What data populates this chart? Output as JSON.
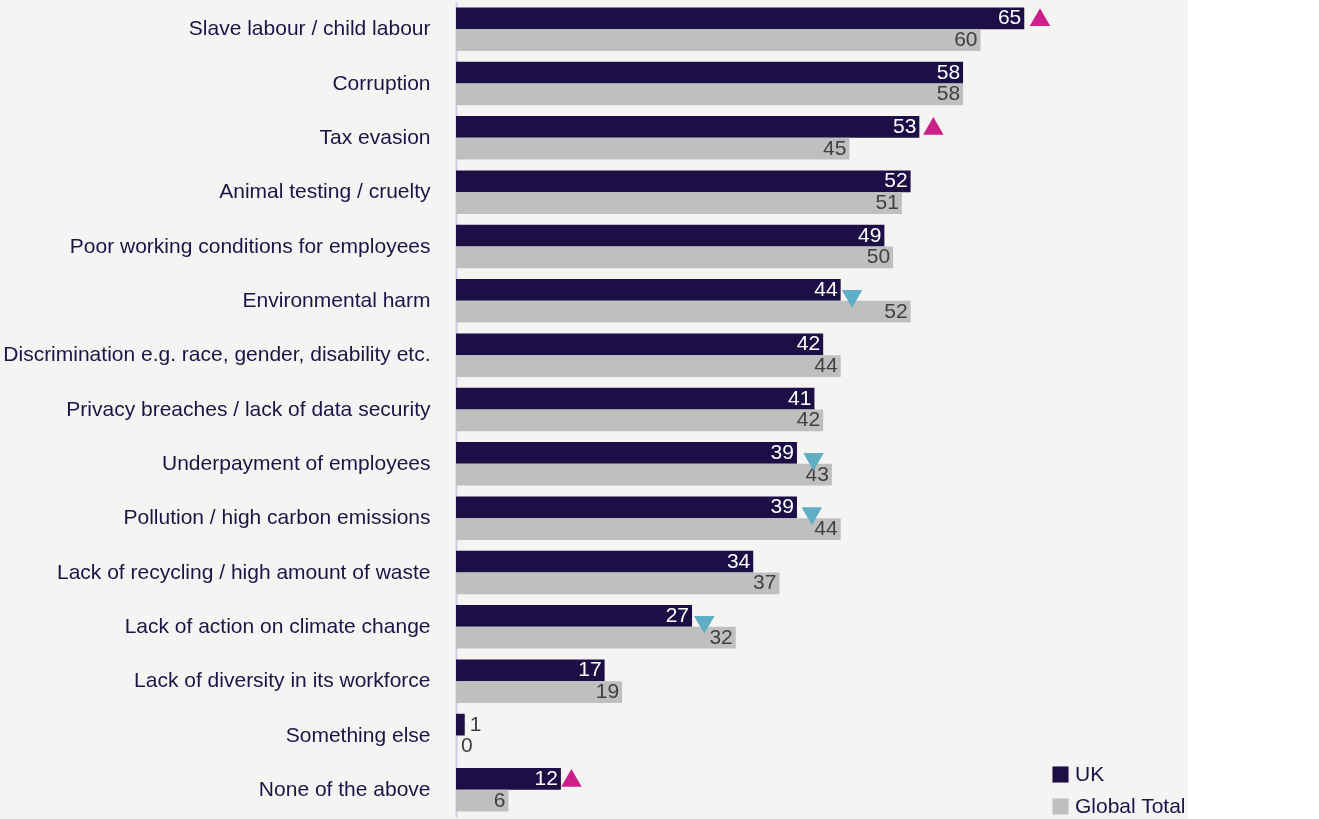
{
  "chart_data": {
    "type": "bar",
    "orientation": "horizontal",
    "legend": "bottom right",
    "categories": [
      "Slave labour / child labour",
      "Corruption",
      "Tax evasion",
      "Animal testing / cruelty",
      "Poor working conditions for employees",
      "Environmental harm",
      "Discrimination e.g. race, gender, disability etc.",
      "Privacy breaches / lack of data security",
      "Underpayment of employees",
      "Pollution / high carbon emissions",
      "Lack of recycling / high amount of waste",
      "Lack of action on climate change",
      "Lack of diversity in its workforce",
      "Something else",
      "None of the above"
    ],
    "series": [
      {
        "name": "UK",
        "color": "#1b0f45",
        "values": [
          65,
          58,
          53,
          52,
          49,
          44,
          42,
          41,
          39,
          39,
          34,
          27,
          17,
          1,
          12
        ],
        "value_labels": [
          "65",
          "58",
          "53",
          "52",
          "49",
          "44",
          "42",
          "41",
          "39",
          "39",
          "34",
          "27",
          "17",
          "1",
          "12"
        ]
      },
      {
        "name": "Global Total",
        "color": "#bfbfbf",
        "values": [
          60,
          58,
          45,
          51,
          50,
          52,
          44,
          42,
          43,
          44,
          37,
          32,
          19,
          0,
          6
        ],
        "value_labels": [
          "60",
          "58",
          "45",
          "51",
          "50",
          "52",
          "44",
          "42",
          "43",
          "44",
          "37",
          "32",
          "19",
          "0",
          "6"
        ]
      },
      {
        "type": "scatter",
        "marker": "triangle",
        "color": "#cc1f8a",
        "values": [
          66.8,
          null,
          54.6,
          null,
          null,
          null,
          null,
          null,
          null,
          null,
          null,
          null,
          null,
          null,
          13.2
        ]
      },
      {
        "type": "scatter",
        "marker": "triangle_down",
        "color": "#5eaec6",
        "values": [
          null,
          null,
          null,
          null,
          null,
          45.3,
          null,
          null,
          40.9,
          40.7,
          null,
          28.4,
          null,
          null,
          null
        ]
      }
    ]
  }
}
